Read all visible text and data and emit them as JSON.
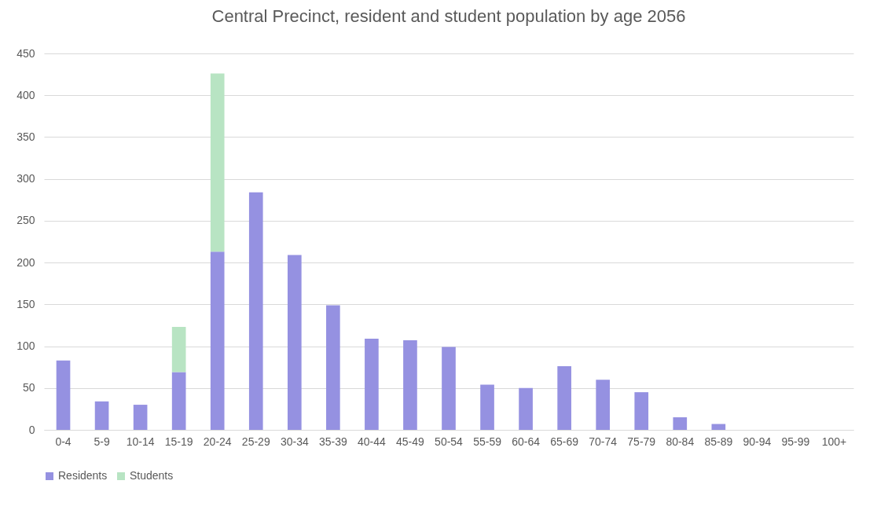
{
  "chart_data": {
    "type": "bar",
    "title": "Central Precinct, resident and student population by age 2056",
    "categories": [
      "0-4",
      "5-9",
      "10-14",
      "15-19",
      "20-24",
      "25-29",
      "30-34",
      "35-39",
      "40-44",
      "45-49",
      "50-54",
      "55-59",
      "60-64",
      "65-69",
      "70-74",
      "75-79",
      "80-84",
      "85-89",
      "90-94",
      "95-99",
      "100+"
    ],
    "stacked": true,
    "series": [
      {
        "name": "Residents",
        "color": "#9591e1",
        "values": [
          83,
          34,
          30,
          69,
          213,
          284,
          209,
          149,
          109,
          107,
          99,
          54,
          50,
          76,
          60,
          45,
          15,
          7,
          0,
          0,
          0
        ]
      },
      {
        "name": "Students",
        "color": "#b8e4c3",
        "values": [
          0,
          0,
          0,
          54,
          213,
          0,
          0,
          0,
          0,
          0,
          0,
          0,
          0,
          0,
          0,
          0,
          0,
          0,
          0,
          0,
          0
        ]
      }
    ],
    "ylim": [
      0,
      450
    ],
    "yticks": [
      0,
      50,
      100,
      150,
      200,
      250,
      300,
      350,
      400,
      450
    ],
    "grid": "y",
    "legend": "bottom"
  }
}
